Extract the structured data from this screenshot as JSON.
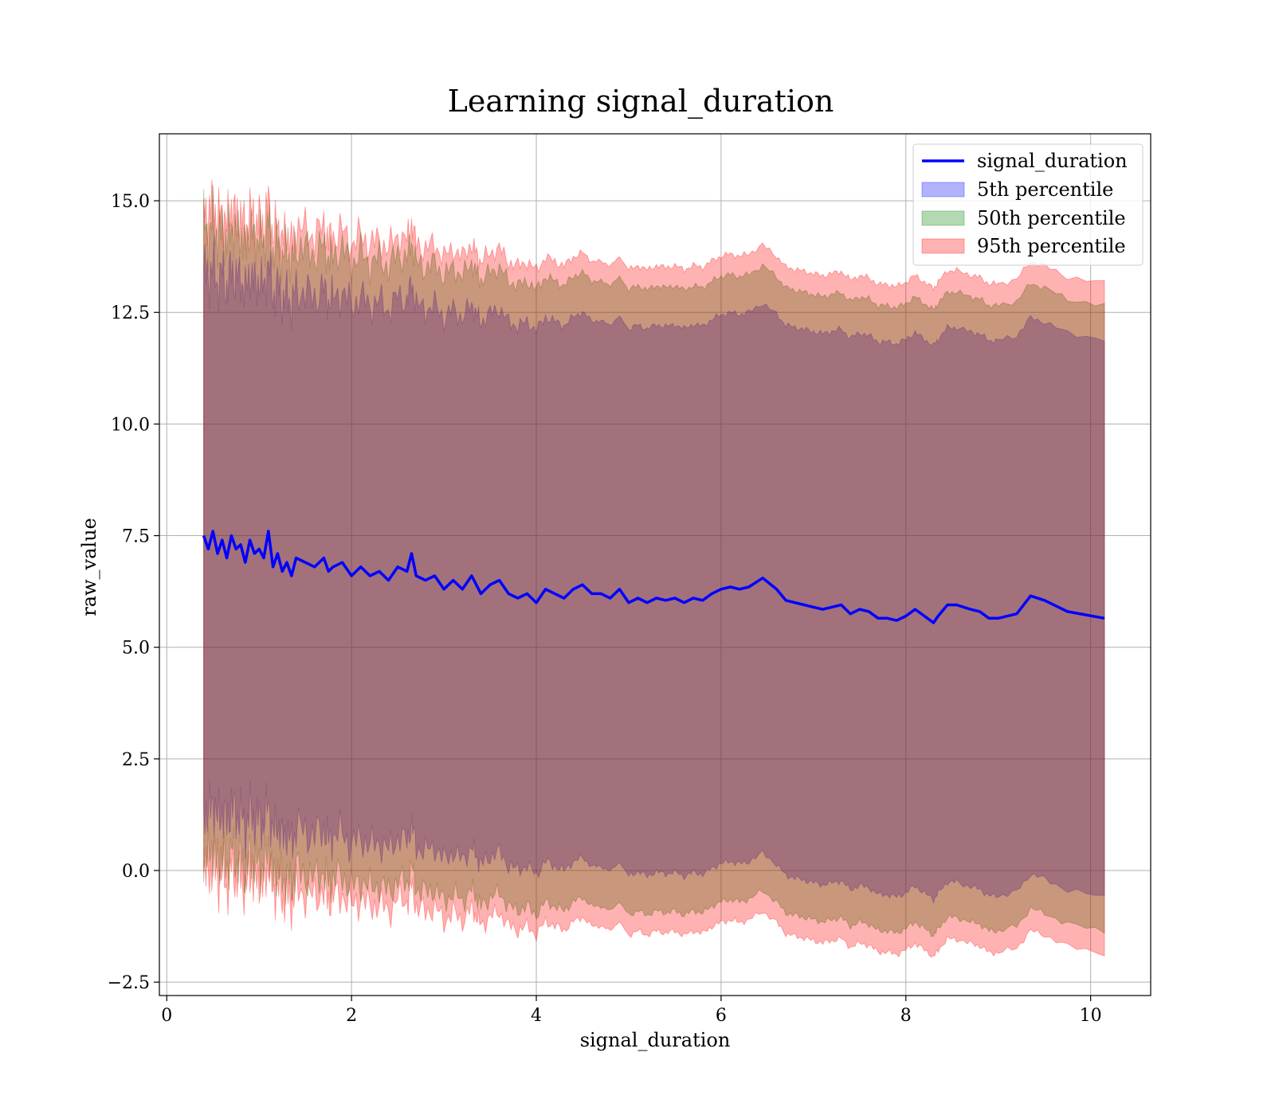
{
  "chart_data": {
    "type": "line",
    "title": "Learning signal_duration",
    "xlabel": "signal_duration",
    "ylabel": "raw_value",
    "xlim": [
      -0.08,
      10.65
    ],
    "ylim": [
      -2.8,
      16.5
    ],
    "xticks": [
      0,
      2,
      4,
      6,
      8,
      10
    ],
    "xtick_labels": [
      "0",
      "2",
      "4",
      "6",
      "8",
      "10"
    ],
    "yticks": [
      -2.5,
      0.0,
      2.5,
      5.0,
      7.5,
      10.0,
      12.5,
      15.0
    ],
    "ytick_labels": [
      "−2.5",
      "0.0",
      "2.5",
      "5.0",
      "7.5",
      "10.0",
      "12.5",
      "15.0"
    ],
    "grid": true,
    "legend_position": "top-right",
    "line": {
      "name": "signal_duration",
      "color": "#0000ff",
      "x": [
        0.4,
        0.45,
        0.5,
        0.55,
        0.6,
        0.65,
        0.7,
        0.75,
        0.8,
        0.85,
        0.9,
        0.95,
        1.0,
        1.05,
        1.1,
        1.15,
        1.2,
        1.25,
        1.3,
        1.35,
        1.4,
        1.5,
        1.6,
        1.7,
        1.75,
        1.8,
        1.9,
        2.0,
        2.1,
        2.2,
        2.3,
        2.4,
        2.5,
        2.6,
        2.65,
        2.7,
        2.8,
        2.9,
        3.0,
        3.1,
        3.2,
        3.3,
        3.35,
        3.4,
        3.5,
        3.6,
        3.7,
        3.8,
        3.9,
        4.0,
        4.1,
        4.2,
        4.3,
        4.4,
        4.5,
        4.6,
        4.7,
        4.8,
        4.9,
        5.0,
        5.1,
        5.2,
        5.3,
        5.4,
        5.5,
        5.6,
        5.7,
        5.8,
        5.9,
        6.0,
        6.1,
        6.2,
        6.3,
        6.45,
        6.6,
        6.7,
        6.8,
        6.9,
        7.0,
        7.1,
        7.2,
        7.3,
        7.4,
        7.5,
        7.6,
        7.7,
        7.8,
        7.9,
        8.0,
        8.1,
        8.2,
        8.3,
        8.35,
        8.45,
        8.55,
        8.7,
        8.8,
        8.9,
        9.0,
        9.2,
        9.35,
        9.5,
        9.75,
        10.15
      ],
      "y": [
        7.5,
        7.2,
        7.6,
        7.1,
        7.4,
        7.0,
        7.5,
        7.2,
        7.3,
        6.9,
        7.4,
        7.1,
        7.2,
        7.0,
        7.6,
        6.8,
        7.1,
        6.7,
        6.9,
        6.6,
        7.0,
        6.9,
        6.8,
        7.0,
        6.7,
        6.8,
        6.9,
        6.6,
        6.8,
        6.6,
        6.7,
        6.5,
        6.8,
        6.7,
        7.1,
        6.6,
        6.5,
        6.6,
        6.3,
        6.5,
        6.3,
        6.6,
        6.4,
        6.2,
        6.4,
        6.5,
        6.2,
        6.1,
        6.2,
        6.0,
        6.3,
        6.2,
        6.1,
        6.3,
        6.4,
        6.2,
        6.2,
        6.1,
        6.3,
        6.0,
        6.1,
        6.0,
        6.1,
        6.05,
        6.1,
        6.0,
        6.1,
        6.05,
        6.2,
        6.3,
        6.35,
        6.3,
        6.35,
        6.55,
        6.3,
        6.05,
        6.0,
        5.95,
        5.9,
        5.85,
        5.9,
        5.95,
        5.75,
        5.85,
        5.8,
        5.65,
        5.65,
        5.6,
        5.7,
        5.85,
        5.7,
        5.55,
        5.7,
        5.95,
        5.95,
        5.85,
        5.8,
        5.65,
        5.65,
        5.75,
        6.15,
        6.05,
        5.8,
        5.65
      ]
    },
    "series": [
      {
        "name": "5th percentile",
        "color": "#0000ff",
        "opacity": 0.3,
        "half_width_start": 6.0,
        "half_width_end": 6.25
      },
      {
        "name": "50th percentile",
        "color": "#008000",
        "opacity": 0.3,
        "half_width_start": 7.0,
        "half_width_end": 7.0
      },
      {
        "name": "95th percentile",
        "color": "#ff0000",
        "opacity": 0.3,
        "half_width_start": 7.4,
        "half_width_end": 7.5
      }
    ]
  }
}
